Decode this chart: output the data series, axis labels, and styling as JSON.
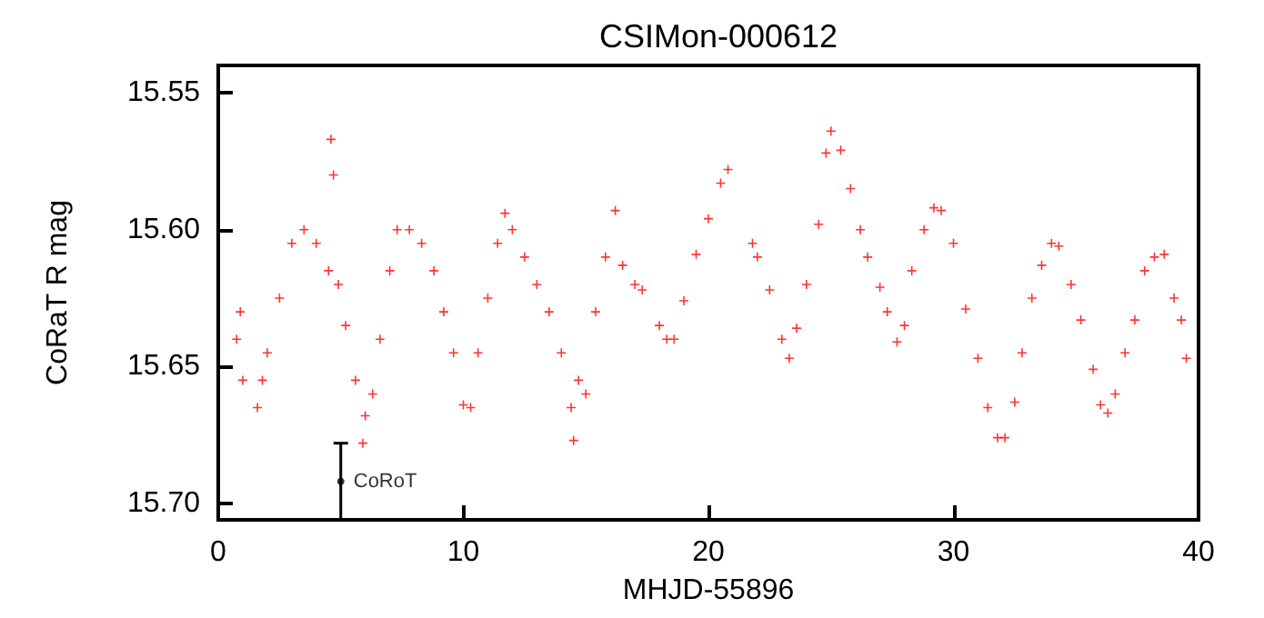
{
  "chart_data": {
    "type": "scatter",
    "title": "CSIMon-000612",
    "xlabel": "MHJD-55896",
    "ylabel": "CoRaT R mag",
    "xlim": [
      0,
      40
    ],
    "xticks": [
      0,
      10,
      20,
      30,
      40
    ],
    "ylim": [
      15.706,
      15.54
    ],
    "yticks": [
      15.55,
      {
        "value": 15.6,
        "label": "15.60"
      },
      15.65,
      {
        "value": 15.7,
        "label": "15.70"
      }
    ],
    "grid": false,
    "legend": false,
    "series": [
      {
        "color": "#ff0000",
        "marker": "cross",
        "x": [
          0.75,
          0.9,
          1.0,
          1.6,
          1.8,
          2.0,
          2.5,
          3.0,
          3.5,
          4.0,
          4.5,
          4.6,
          4.7,
          4.9,
          5.2,
          5.6,
          5.9,
          6.0,
          6.3,
          6.6,
          7.0,
          7.3,
          7.8,
          8.3,
          8.8,
          9.2,
          9.6,
          10.0,
          10.3,
          10.6,
          11.0,
          11.4,
          11.7,
          12.0,
          12.5,
          13.0,
          13.5,
          14.0,
          14.4,
          14.5,
          14.7,
          15.0,
          15.4,
          15.8,
          16.2,
          16.5,
          17.0,
          17.3,
          18.0,
          18.3,
          18.6,
          19.0,
          19.5,
          20.0,
          20.5,
          20.8,
          21.8,
          22.0,
          22.5,
          23.0,
          23.3,
          23.6,
          24.0,
          24.5,
          24.8,
          25.0,
          25.4,
          25.8,
          26.2,
          26.5,
          27.0,
          27.3,
          27.7,
          28.0,
          28.3,
          28.8,
          29.2,
          29.5,
          30.0,
          30.5,
          31.0,
          31.4,
          31.8,
          32.1,
          32.5,
          32.8,
          33.2,
          33.6,
          34.0,
          34.3,
          34.8,
          35.2,
          35.7,
          36.0,
          36.3,
          36.6,
          37.0,
          37.4,
          37.8,
          38.2,
          38.6,
          39.0,
          39.3,
          39.5
        ],
        "values": [
          15.64,
          15.63,
          15.655,
          15.665,
          15.655,
          15.645,
          15.625,
          15.605,
          15.6,
          15.605,
          15.615,
          15.567,
          15.58,
          15.62,
          15.635,
          15.655,
          15.678,
          15.668,
          15.66,
          15.64,
          15.615,
          15.6,
          15.6,
          15.605,
          15.615,
          15.63,
          15.645,
          15.664,
          15.665,
          15.645,
          15.625,
          15.605,
          15.594,
          15.6,
          15.61,
          15.62,
          15.63,
          15.645,
          15.665,
          15.677,
          15.655,
          15.66,
          15.63,
          15.61,
          15.593,
          15.613,
          15.62,
          15.622,
          15.635,
          15.64,
          15.64,
          15.626,
          15.609,
          15.596,
          15.583,
          15.578,
          15.605,
          15.61,
          15.622,
          15.64,
          15.647,
          15.636,
          15.62,
          15.598,
          15.572,
          15.564,
          15.571,
          15.585,
          15.6,
          15.61,
          15.621,
          15.63,
          15.641,
          15.635,
          15.615,
          15.6,
          15.592,
          15.593,
          15.605,
          15.629,
          15.647,
          15.665,
          15.676,
          15.676,
          15.663,
          15.645,
          15.625,
          15.613,
          15.605,
          15.606,
          15.62,
          15.633,
          15.651,
          15.664,
          15.667,
          15.66,
          15.645,
          15.633,
          15.615,
          15.61,
          15.609,
          15.625,
          15.633,
          15.647
        ]
      },
      {
        "name": "CoRoT",
        "color": "#000000",
        "marker": "circle",
        "x": [
          5
        ],
        "values": [
          15.692
        ],
        "errors": [
          0.014
        ]
      }
    ]
  }
}
